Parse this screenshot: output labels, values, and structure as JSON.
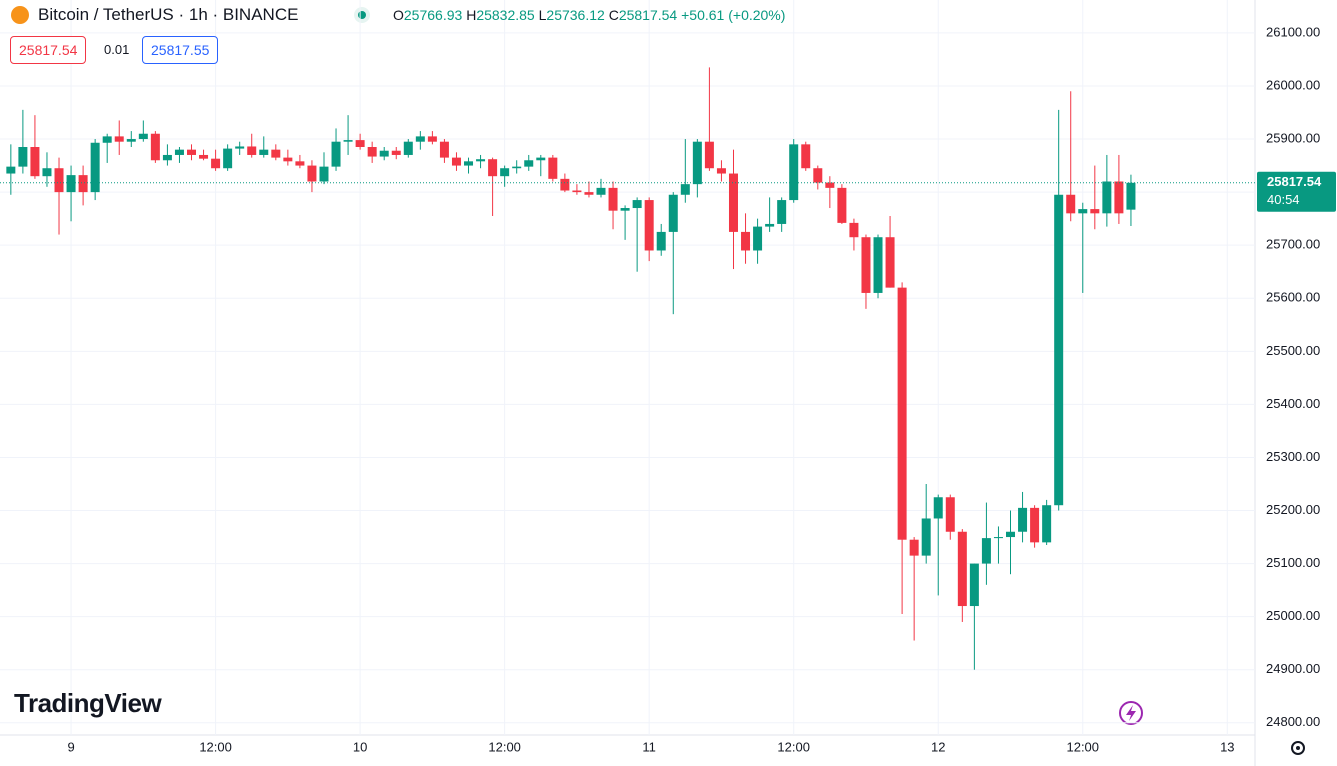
{
  "header": {
    "title": "Bitcoin / TetherUS · 1h · BINANCE",
    "ohlc": [
      {
        "key": "O",
        "value": 25766.93
      },
      {
        "key": "H",
        "value": 25832.85
      },
      {
        "key": "L",
        "value": 25736.12
      },
      {
        "key": "C",
        "value": 25817.54
      }
    ],
    "change": "+50.61 (+0.20%)",
    "bid": "25817.54",
    "spread": "0.01",
    "ask": "25817.55"
  },
  "logo": "TradingView",
  "chart_data": {
    "type": "candlestick",
    "up_color": "#089981",
    "down_color": "#f23645",
    "grid": true,
    "x": [
      -5,
      -4,
      -3,
      -2,
      -1,
      0,
      1,
      2,
      3,
      4,
      5,
      6,
      7,
      8,
      9,
      10,
      11,
      12,
      13,
      14,
      15,
      16,
      17,
      18,
      19,
      20,
      21,
      22,
      23,
      24,
      25,
      26,
      27,
      28,
      29,
      30,
      31,
      32,
      33,
      34,
      35,
      36,
      37,
      38,
      39,
      40,
      41,
      42,
      43,
      44,
      45,
      46,
      47,
      48,
      49,
      50,
      51,
      52,
      53,
      54,
      55,
      56,
      57,
      58,
      59,
      60,
      61,
      62,
      63,
      64,
      65,
      66,
      67,
      68,
      69,
      70,
      71,
      72,
      73,
      74,
      75,
      76,
      77,
      78,
      79,
      80,
      81,
      82,
      83,
      84,
      85,
      86,
      87,
      88
    ],
    "open": [
      25835,
      25848,
      25885,
      25830,
      25845,
      25800,
      25832,
      25800,
      25893,
      25905,
      25895,
      25900,
      25910,
      25860,
      25870,
      25880,
      25870,
      25863,
      25845,
      25882,
      25886,
      25870,
      25880,
      25865,
      25858,
      25850,
      25820,
      25848,
      25895,
      25898,
      25885,
      25867,
      25878,
      25870,
      25895,
      25905,
      25895,
      25865,
      25850,
      25858,
      25862,
      25830,
      25845,
      25848,
      25860,
      25865,
      25825,
      25803,
      25800,
      25795,
      25808,
      25765,
      25770,
      25785,
      25690,
      25725,
      25795,
      25815,
      25895,
      25845,
      25835,
      25725,
      25690,
      25735,
      25740,
      25785,
      25890,
      25845,
      25818,
      25808,
      25742,
      25715,
      25610,
      25715,
      25620,
      25145,
      25115,
      25185,
      25225,
      25160,
      25020,
      25100,
      25148,
      25150,
      25160,
      25205,
      25140,
      25210,
      25795,
      25760,
      25768,
      25760,
      25820,
      25766.93
    ],
    "high": [
      25890,
      25955,
      25945,
      25875,
      25865,
      25850,
      25850,
      25900,
      25910,
      25935,
      25915,
      25935,
      25915,
      25890,
      25885,
      25890,
      25880,
      25880,
      25890,
      25895,
      25910,
      25905,
      25890,
      25880,
      25870,
      25860,
      25875,
      25920,
      25945,
      25910,
      25895,
      25885,
      25885,
      25900,
      25915,
      25915,
      25900,
      25875,
      25865,
      25870,
      25865,
      25850,
      25860,
      25870,
      25870,
      25870,
      25835,
      25815,
      25820,
      25825,
      25820,
      25775,
      25790,
      25790,
      25740,
      25800,
      25900,
      25900,
      26035,
      25860,
      25880,
      25760,
      25750,
      25790,
      25790,
      25900,
      25895,
      25850,
      25830,
      25815,
      25750,
      25720,
      25720,
      25755,
      25630,
      25150,
      25250,
      25230,
      25230,
      25165,
      25100,
      25215,
      25170,
      25200,
      25235,
      25210,
      25220,
      25955,
      25990,
      25780,
      25850,
      25870,
      25870,
      25832.85
    ],
    "low": [
      25795,
      25835,
      25825,
      25810,
      25720,
      25745,
      25775,
      25785,
      25855,
      25870,
      25885,
      25895,
      25855,
      25850,
      25855,
      25860,
      25860,
      25840,
      25840,
      25870,
      25865,
      25865,
      25860,
      25850,
      25845,
      25800,
      25815,
      25840,
      25870,
      25880,
      25855,
      25860,
      25862,
      25865,
      25880,
      25890,
      25855,
      25840,
      25835,
      25845,
      25755,
      25810,
      25835,
      25840,
      25830,
      25820,
      25800,
      25795,
      25790,
      25790,
      25730,
      25710,
      25650,
      25670,
      25680,
      25570,
      25780,
      25790,
      25840,
      25820,
      25655,
      25665,
      25665,
      25725,
      25725,
      25780,
      25840,
      25805,
      25770,
      25740,
      25690,
      25580,
      25600,
      25620,
      25005,
      24955,
      25100,
      25040,
      25145,
      24990,
      24900,
      25060,
      25100,
      25080,
      25140,
      25130,
      25135,
      25200,
      25745,
      25610,
      25730,
      25735,
      25740,
      25736.12
    ],
    "close": [
      25848,
      25885,
      25830,
      25845,
      25800,
      25832,
      25800,
      25893,
      25905,
      25895,
      25900,
      25910,
      25860,
      25870,
      25880,
      25870,
      25863,
      25845,
      25882,
      25886,
      25870,
      25880,
      25865,
      25858,
      25850,
      25820,
      25848,
      25895,
      25898,
      25885,
      25867,
      25878,
      25870,
      25895,
      25905,
      25895,
      25865,
      25850,
      25858,
      25862,
      25830,
      25845,
      25848,
      25860,
      25865,
      25825,
      25803,
      25800,
      25795,
      25808,
      25765,
      25770,
      25785,
      25690,
      25725,
      25795,
      25815,
      25895,
      25845,
      25835,
      25725,
      25690,
      25735,
      25740,
      25785,
      25890,
      25845,
      25818,
      25808,
      25742,
      25715,
      25610,
      25715,
      25620,
      25145,
      25115,
      25185,
      25225,
      25160,
      25020,
      25100,
      25148,
      25150,
      25160,
      25205,
      25140,
      25210,
      25795,
      25760,
      25768,
      25760,
      25820,
      25760,
      25817.54
    ],
    "xlim": [
      -5.9,
      98.3
    ],
    "xticks": [
      {
        "value": 0,
        "label": "9"
      },
      {
        "value": 12,
        "label": "12:00"
      },
      {
        "value": 24,
        "label": "10"
      },
      {
        "value": 36,
        "label": "12:00"
      },
      {
        "value": 48,
        "label": "11"
      },
      {
        "value": 60,
        "label": "12:00"
      },
      {
        "value": 72,
        "label": "12"
      },
      {
        "value": 84,
        "label": "12:00"
      },
      {
        "value": 96,
        "label": "13"
      }
    ],
    "ylim": [
      24777,
      26162
    ],
    "yticks": [
      {
        "value": 24800,
        "label": "24800.00"
      },
      {
        "value": 24900,
        "label": "24900.00"
      },
      {
        "value": 25000,
        "label": "25000.00"
      },
      {
        "value": 25100,
        "label": "25100.00"
      },
      {
        "value": 25200,
        "label": "25200.00"
      },
      {
        "value": 25300,
        "label": "25300.00"
      },
      {
        "value": 25400,
        "label": "25400.00"
      },
      {
        "value": 25500,
        "label": "25500.00"
      },
      {
        "value": 25600,
        "label": "25600.00"
      },
      {
        "value": 25700,
        "label": "25700.00"
      },
      {
        "value": 25800,
        "label": "25800.00"
      },
      {
        "value": 25900,
        "label": "25900.00"
      },
      {
        "value": 26000,
        "label": "26000.00"
      },
      {
        "value": 26100,
        "label": "26100.00"
      }
    ],
    "last_price": 25817.54,
    "countdown": "40:54"
  }
}
